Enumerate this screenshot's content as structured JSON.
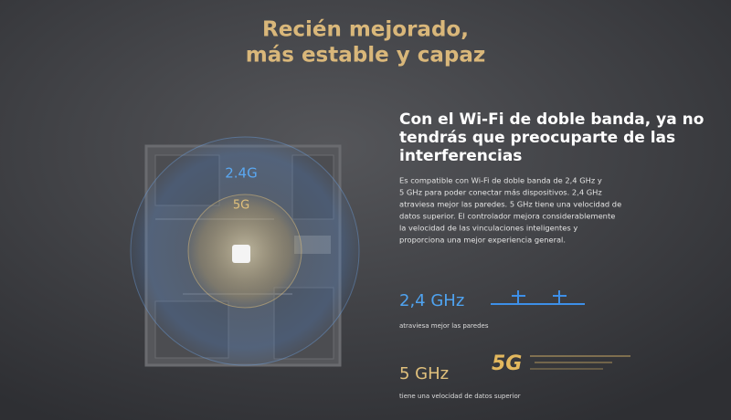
{
  "header": {
    "title": [
      "Recién mejorado,",
      "más estable y capaz"
    ]
  },
  "map": {
    "labels": [
      "2.4G",
      "5G"
    ]
  },
  "section": {
    "heading": [
      "Con el Wi-Fi de doble banda, ya no",
      "tendrás que preocuparte de las",
      "interferencias"
    ],
    "paragraph": [
      "Es compatible con Wi-Fi de doble banda de 2,4 GHz y",
      "5 GHz para poder conectar más dispositivos. 2,4 GHz",
      "atraviesa mejor las paredes. 5 GHz tiene una velocidad de",
      "datos superior. El controlador mejora considerablemente",
      "la velocidad de las vinculaciones inteligentes y",
      "proporciona una mejor experiencia general."
    ]
  },
  "features": [
    {
      "band": "2,4 GHz",
      "caption": "atraviesa mejor las paredes"
    },
    {
      "band": "5 GHz",
      "caption": "tiene una velocidad de datos superior",
      "logo": "5G"
    }
  ]
}
